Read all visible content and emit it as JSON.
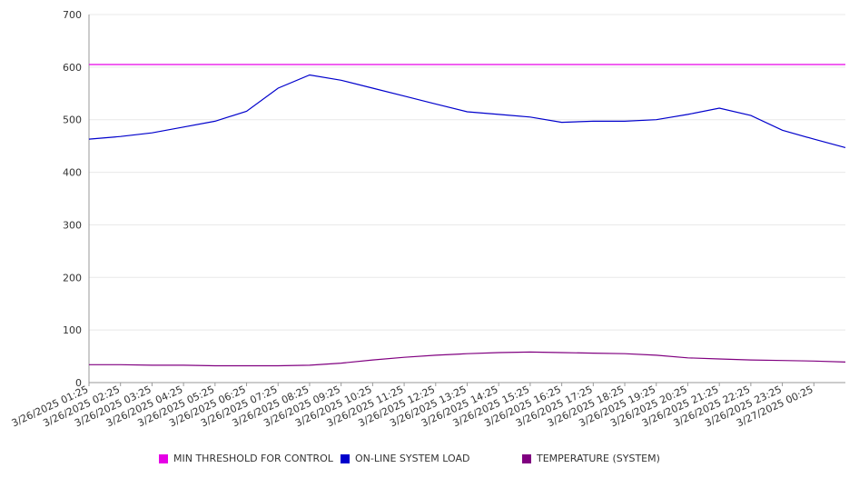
{
  "chart_data": {
    "type": "line",
    "ylim": [
      0,
      700
    ],
    "yticks": [
      "0",
      "100",
      "200",
      "300",
      "400",
      "500",
      "600",
      "700"
    ],
    "grid": true,
    "legend_position": "bottom",
    "x_tick_labels": [
      "3/26/2025 01:25",
      "3/26/2025 02:25",
      "3/26/2025 03:25",
      "3/26/2025 04:25",
      "3/26/2025 05:25",
      "3/26/2025 06:25",
      "3/26/2025 07:25",
      "3/26/2025 08:25",
      "3/26/2025 09:25",
      "3/26/2025 10:25",
      "3/26/2025 11:25",
      "3/26/2025 12:25",
      "3/26/2025 13:25",
      "3/26/2025 14:25",
      "3/26/2025 15:25",
      "3/26/2025 16:25",
      "3/26/2025 17:25",
      "3/26/2025 18:25",
      "3/26/2025 19:25",
      "3/26/2025 20:25",
      "3/26/2025 21:25",
      "3/26/2025 22:25",
      "3/26/2025 23:25",
      "3/27/2025 00:25"
    ],
    "x_hours": [
      0,
      1,
      2,
      3,
      4,
      5,
      6,
      7,
      8,
      9,
      10,
      11,
      12,
      13,
      14,
      15,
      16,
      17,
      18,
      19,
      20,
      21,
      22,
      23,
      24
    ],
    "series": [
      {
        "name": "MIN THRESHOLD FOR CONTROL",
        "color": "#e600e6",
        "values": [
          605,
          605,
          605,
          605,
          605,
          605,
          605,
          605,
          605,
          605,
          605,
          605,
          605,
          605,
          605,
          605,
          605,
          605,
          605,
          605,
          605,
          605,
          605,
          605,
          605
        ]
      },
      {
        "name": "ON-LINE SYSTEM LOAD",
        "color": "#0000cc",
        "values": [
          463,
          468,
          475,
          486,
          497,
          516,
          560,
          585,
          575,
          560,
          545,
          530,
          515,
          510,
          505,
          495,
          497,
          497,
          500,
          510,
          522,
          508,
          480,
          463,
          447
        ]
      },
      {
        "name": "TEMPERATURE (SYSTEM)",
        "color": "#800080",
        "values": [
          34,
          34,
          33,
          33,
          32,
          32,
          32,
          33,
          37,
          43,
          48,
          52,
          55,
          57,
          58,
          57,
          56,
          55,
          52,
          47,
          45,
          43,
          42,
          41,
          39
        ]
      }
    ]
  }
}
